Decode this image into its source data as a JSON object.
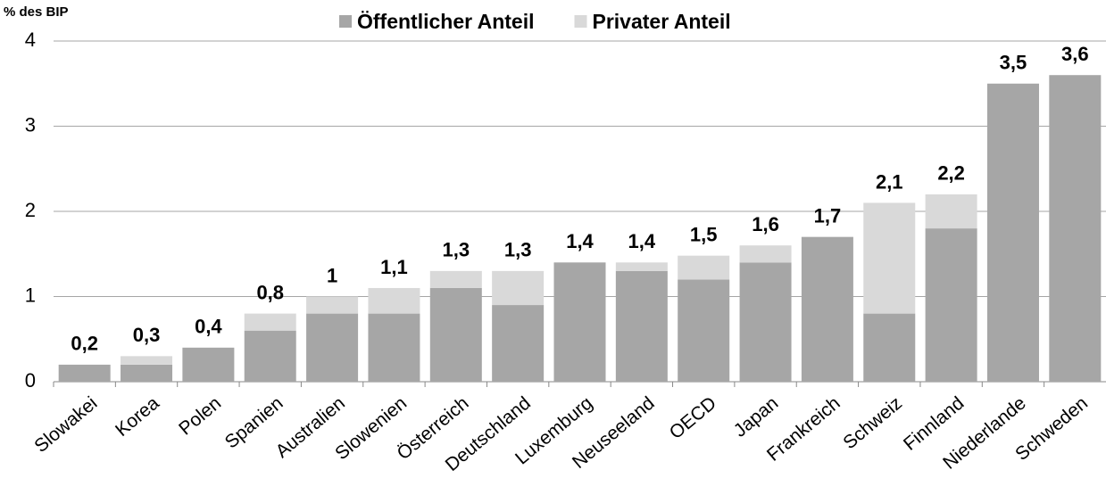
{
  "chart_data": {
    "type": "bar",
    "stacked": true,
    "y_label": "% des BIP",
    "categories": [
      "Slowakei",
      "Korea",
      "Polen",
      "Spanien",
      "Australien",
      "Slowenien",
      "Österreich",
      "Deutschland",
      "Luxemburg",
      "Neuseeland",
      "OECD",
      "Japan",
      "Frankreich",
      "Schweiz",
      "Finnland",
      "Niederlande",
      "Schweden"
    ],
    "series": [
      {
        "name": "Öffentlicher Anteil",
        "color": "#a6a6a6",
        "values": [
          0.2,
          0.2,
          0.4,
          0.6,
          0.8,
          0.8,
          1.1,
          0.9,
          1.4,
          1.3,
          1.2,
          1.4,
          1.7,
          0.8,
          1.8,
          3.5,
          3.6
        ]
      },
      {
        "name": "Privater Anteil",
        "color": "#d9d9d9",
        "values": [
          0,
          0.1,
          0,
          0.2,
          0.2,
          0.3,
          0.2,
          0.4,
          0,
          0.1,
          0.28,
          0.2,
          0,
          1.3,
          0.4,
          0,
          0
        ]
      }
    ],
    "totals": [
      0.2,
      0.3,
      0.4,
      0.8,
      1,
      1.1,
      1.3,
      1.3,
      1.4,
      1.4,
      1.5,
      1.6,
      1.7,
      2.1,
      2.2,
      3.5,
      3.6
    ],
    "total_labels": [
      "0,2",
      "0,3",
      "0,4",
      "0,8",
      "1",
      "1,1",
      "1,3",
      "1,3",
      "1,4",
      "1,4",
      "1,5",
      "1,6",
      "1,7",
      "2,1",
      "2,2",
      "3,5",
      "3,6"
    ],
    "ylim": [
      0,
      4
    ],
    "yticks": [
      0,
      1,
      2,
      3,
      4
    ],
    "grid": true,
    "legend": "top"
  }
}
